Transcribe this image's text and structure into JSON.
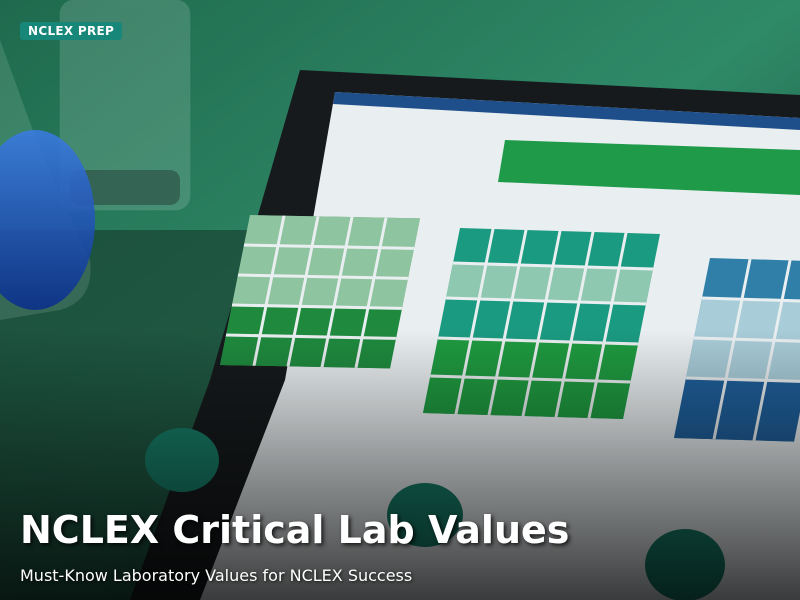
{
  "badge": "NCLEX PREP",
  "title": "NCLEX Critical Lab Values",
  "subtitle": "Must-Know Laboratory Values for NCLEX Success"
}
